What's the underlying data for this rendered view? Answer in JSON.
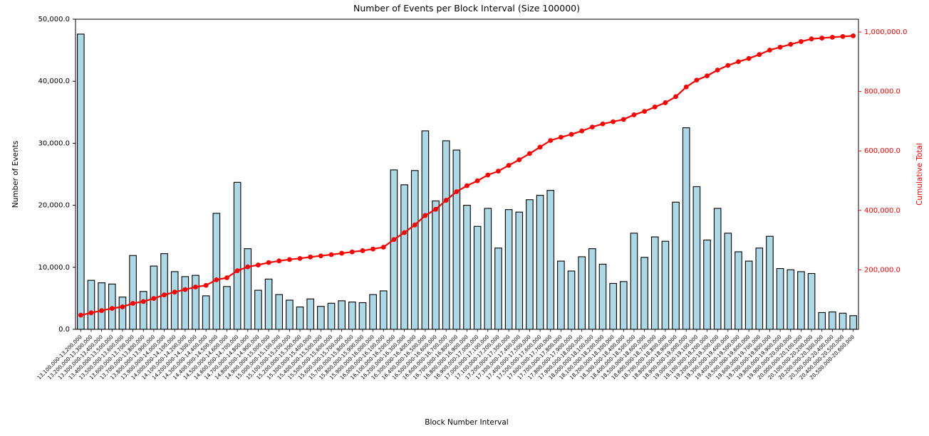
{
  "chart_data": {
    "type": "bar",
    "title": "Number of Events per Block Interval (Size 100000)",
    "xlabel": "Block Number Interval",
    "ylabel": "Number of Events",
    "ylabel_right": "Cumulative Total",
    "legend_position": "none",
    "grid": false,
    "left_axis": {
      "ylim": [
        0,
        50000
      ],
      "tick_labels": [
        "0.0",
        "10,000.0",
        "20,000.0",
        "30,000.0",
        "40,000.0",
        "50,000.0"
      ]
    },
    "right_axis": {
      "ylim": [
        0,
        1043000
      ],
      "tick_labels": [
        "200,000.0",
        "400,000.0",
        "600,000.0",
        "800,000.0",
        "1,000,000.0"
      ]
    },
    "colors": {
      "bar_fill": "#ADD8E6",
      "bar_edge": "#000000",
      "line": "#FF0000",
      "right_axis_text": "#FF0000"
    },
    "categories": [
      "13,100,000-13,200,000",
      "13,200,000-13,300,000",
      "13,300,000-13,400,000",
      "13,400,000-13,500,000",
      "13,500,000-13,600,000",
      "13,600,000-13,700,000",
      "13,700,000-13,800,000",
      "13,800,000-13,900,000",
      "13,900,000-14,000,000",
      "14,000,000-14,100,000",
      "14,100,000-14,200,000",
      "14,200,000-14,300,000",
      "14,300,000-14,400,000",
      "14,400,000-14,500,000",
      "14,500,000-14,600,000",
      "14,600,000-14,700,000",
      "14,700,000-14,800,000",
      "14,800,000-14,900,000",
      "14,900,000-15,000,000",
      "15,000,000-15,100,000",
      "15,100,000-15,200,000",
      "15,200,000-15,300,000",
      "15,300,000-15,400,000",
      "15,400,000-15,500,000",
      "15,500,000-15,600,000",
      "15,600,000-15,700,000",
      "15,700,000-15,800,000",
      "15,800,000-15,900,000",
      "15,900,000-16,000,000",
      "16,000,000-16,100,000",
      "16,100,000-16,200,000",
      "16,200,000-16,300,000",
      "16,300,000-16,400,000",
      "16,400,000-16,500,000",
      "16,500,000-16,600,000",
      "16,600,000-16,700,000",
      "16,700,000-16,800,000",
      "16,800,000-16,900,000",
      "16,900,000-17,000,000",
      "17,000,000-17,100,000",
      "17,100,000-17,200,000",
      "17,200,000-17,300,000",
      "17,300,000-17,400,000",
      "17,400,000-17,500,000",
      "17,500,000-17,600,000",
      "17,600,000-17,700,000",
      "17,700,000-17,800,000",
      "17,800,000-17,900,000",
      "17,900,000-18,000,000",
      "18,000,000-18,100,000",
      "18,100,000-18,200,000",
      "18,200,000-18,300,000",
      "18,300,000-18,400,000",
      "18,400,000-18,500,000",
      "18,500,000-18,600,000",
      "18,600,000-18,700,000",
      "18,700,000-18,800,000",
      "18,800,000-18,900,000",
      "18,900,000-19,000,000",
      "19,000,000-19,100,000",
      "19,100,000-19,200,000",
      "19,200,000-19,300,000",
      "19,300,000-19,400,000",
      "19,400,000-19,500,000",
      "19,500,000-19,600,000",
      "19,600,000-19,700,000",
      "19,700,000-19,800,000",
      "19,800,000-19,900,000",
      "19,900,000-20,000,000",
      "20,000,000-20,100,000",
      "20,100,000-20,200,000",
      "20,200,000-20,300,000",
      "20,300,000-20,400,000",
      "20,400,000-20,500,000",
      "20,500,000-20,600,000"
    ],
    "series": [
      {
        "name": "Number of Events",
        "type": "bar",
        "axis": "left",
        "values": [
          47600,
          7900,
          7500,
          7300,
          5200,
          11900,
          6100,
          10200,
          12200,
          9300,
          8500,
          8700,
          5400,
          18700,
          6900,
          23700,
          13000,
          6300,
          8100,
          5600,
          4700,
          3600,
          4900,
          3700,
          4200,
          4600,
          4400,
          4300,
          5600,
          6200,
          25700,
          23300,
          25600,
          32000,
          20700,
          30400,
          28900,
          20000,
          16600,
          19500,
          13100,
          19300,
          18900,
          20900,
          21600,
          22400,
          11000,
          9400,
          11700,
          13000,
          10500,
          7400,
          7700,
          15500,
          11600,
          14900,
          14200,
          20500,
          32500,
          23000,
          14400,
          19500,
          15500,
          12500,
          11000,
          13100,
          15000,
          9800,
          9600,
          9300,
          9000,
          2700,
          2800,
          2600,
          2200
        ]
      },
      {
        "name": "Cumulative Total",
        "type": "line",
        "axis": "right",
        "values": [
          47600,
          55500,
          63000,
          70300,
          75500,
          87400,
          93500,
          103700,
          115900,
          125200,
          133700,
          142400,
          147800,
          166500,
          173400,
          197100,
          210100,
          216400,
          224500,
          230100,
          234800,
          238400,
          243300,
          247000,
          251200,
          255800,
          260200,
          264500,
          270100,
          276300,
          302000,
          325300,
          350900,
          382900,
          403600,
          434000,
          462900,
          482900,
          499500,
          519000,
          532100,
          551400,
          570300,
          591200,
          612800,
          635200,
          646200,
          655600,
          667300,
          680300,
          690800,
          698200,
          705900,
          721400,
          733000,
          747900,
          762100,
          782600,
          815100,
          838100,
          852500,
          872000,
          887500,
          900000,
          911000,
          924100,
          939100,
          948900,
          958500,
          967800,
          976800,
          979500,
          982300,
          984900,
          987100
        ]
      }
    ]
  }
}
